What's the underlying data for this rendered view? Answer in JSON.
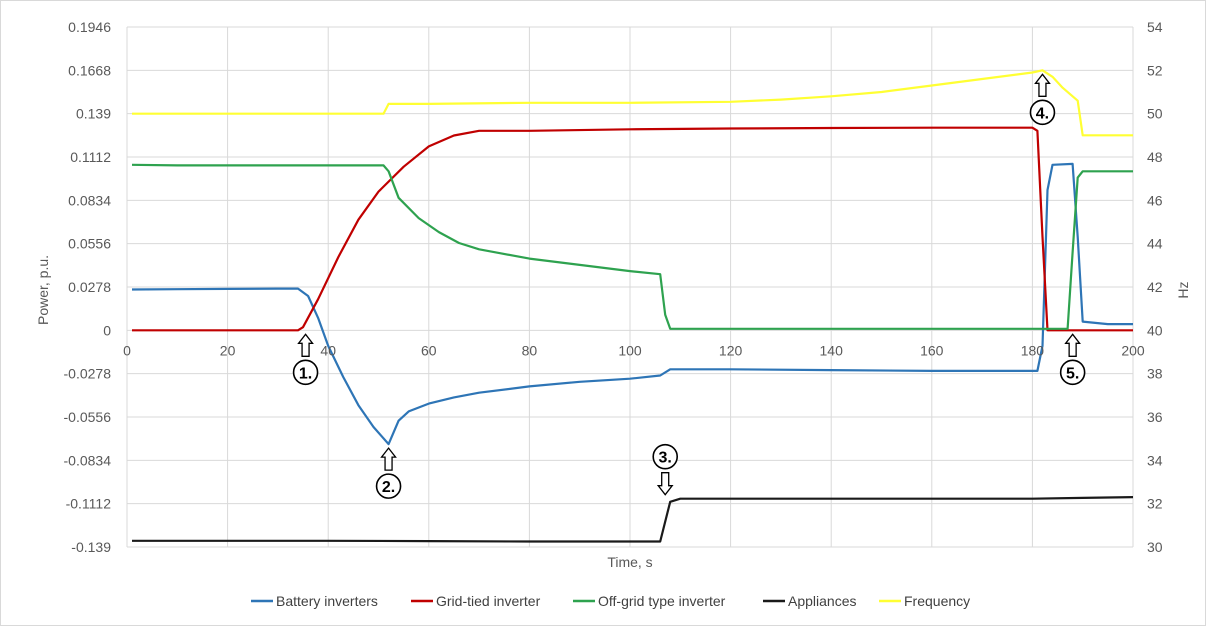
{
  "chart_data": {
    "type": "line",
    "xlabel": "Time, s",
    "ylabel": "Power, p.u.",
    "y2label": "Hz",
    "xlim": [
      0,
      200
    ],
    "ylim": [
      -0.139,
      0.1946
    ],
    "y2lim": [
      30,
      54
    ],
    "xticks": [
      "0",
      "20",
      "40",
      "60",
      "80",
      "100",
      "120",
      "140",
      "160",
      "180",
      "200"
    ],
    "yticks": [
      "0.1946",
      "0.1668",
      "0.139",
      "0.1112",
      "0.0834",
      "0.0556",
      "0.0278",
      "0",
      "-0.0278",
      "-0.0556",
      "-0.0834",
      "-0.1112",
      "-0.139"
    ],
    "y2ticks": [
      "54",
      "52",
      "50",
      "48",
      "46",
      "44",
      "42",
      "40",
      "38",
      "36",
      "34",
      "32",
      "30"
    ],
    "grid": true,
    "legend_position": "bottom",
    "series": [
      {
        "name": "Battery inverters",
        "color": "#2E75B6",
        "axis": "left",
        "points": [
          [
            1,
            0.0262
          ],
          [
            10,
            0.0264
          ],
          [
            20,
            0.0266
          ],
          [
            30,
            0.0268
          ],
          [
            34,
            0.0268
          ],
          [
            36,
            0.022
          ],
          [
            38,
            0.008
          ],
          [
            40,
            -0.01
          ],
          [
            43,
            -0.03
          ],
          [
            46,
            -0.048
          ],
          [
            49,
            -0.062
          ],
          [
            52,
            -0.073
          ],
          [
            54,
            -0.058
          ],
          [
            56,
            -0.052
          ],
          [
            60,
            -0.047
          ],
          [
            65,
            -0.043
          ],
          [
            70,
            -0.04
          ],
          [
            80,
            -0.036
          ],
          [
            90,
            -0.033
          ],
          [
            100,
            -0.031
          ],
          [
            106,
            -0.029
          ],
          [
            108,
            -0.025
          ],
          [
            120,
            -0.025
          ],
          [
            140,
            -0.0255
          ],
          [
            160,
            -0.026
          ],
          [
            181,
            -0.026
          ],
          [
            182,
            -0.01
          ],
          [
            183,
            0.09
          ],
          [
            184,
            0.1062
          ],
          [
            188,
            0.1068
          ],
          [
            189,
            0.06
          ],
          [
            190,
            0.0056
          ],
          [
            195,
            0.004
          ],
          [
            200,
            0.004
          ]
        ]
      },
      {
        "name": "Grid-tied inverter",
        "color": "#C00000",
        "axis": "left",
        "points": [
          [
            1,
            0.0
          ],
          [
            20,
            0.0
          ],
          [
            34,
            0.0
          ],
          [
            35,
            0.002
          ],
          [
            38,
            0.02
          ],
          [
            42,
            0.047
          ],
          [
            46,
            0.071
          ],
          [
            50,
            0.089
          ],
          [
            55,
            0.105
          ],
          [
            60,
            0.118
          ],
          [
            65,
            0.125
          ],
          [
            70,
            0.128
          ],
          [
            80,
            0.128
          ],
          [
            100,
            0.129
          ],
          [
            120,
            0.1295
          ],
          [
            140,
            0.1298
          ],
          [
            160,
            0.13
          ],
          [
            180,
            0.13
          ],
          [
            181,
            0.128
          ],
          [
            182,
            0.06
          ],
          [
            183,
            0.0
          ],
          [
            190,
            0.0
          ],
          [
            200,
            0.0
          ]
        ]
      },
      {
        "name": "Off-grid type inverter",
        "color": "#2EA24F",
        "axis": "left",
        "points": [
          [
            1,
            0.1062
          ],
          [
            10,
            0.1058
          ],
          [
            20,
            0.1058
          ],
          [
            40,
            0.1058
          ],
          [
            51,
            0.1058
          ],
          [
            52,
            0.102
          ],
          [
            54,
            0.085
          ],
          [
            58,
            0.072
          ],
          [
            62,
            0.063
          ],
          [
            66,
            0.056
          ],
          [
            70,
            0.052
          ],
          [
            80,
            0.046
          ],
          [
            90,
            0.042
          ],
          [
            100,
            0.038
          ],
          [
            106,
            0.036
          ],
          [
            107,
            0.01
          ],
          [
            108,
            0.001
          ],
          [
            120,
            0.001
          ],
          [
            150,
            0.001
          ],
          [
            181,
            0.001
          ],
          [
            187,
            0.001
          ],
          [
            188,
            0.05
          ],
          [
            189,
            0.098
          ],
          [
            190,
            0.102
          ],
          [
            200,
            0.102
          ]
        ]
      },
      {
        "name": "Appliances",
        "color": "#1A1A1A",
        "axis": "left",
        "points": [
          [
            1,
            -0.135
          ],
          [
            20,
            -0.135
          ],
          [
            40,
            -0.135
          ],
          [
            60,
            -0.1352
          ],
          [
            80,
            -0.1355
          ],
          [
            100,
            -0.1355
          ],
          [
            106,
            -0.1355
          ],
          [
            108,
            -0.11
          ],
          [
            110,
            -0.108
          ],
          [
            120,
            -0.108
          ],
          [
            140,
            -0.108
          ],
          [
            160,
            -0.108
          ],
          [
            180,
            -0.108
          ],
          [
            190,
            -0.1075
          ],
          [
            200,
            -0.107
          ]
        ]
      },
      {
        "name": "Frequency",
        "color": "#FFFF33",
        "axis": "right",
        "points": [
          [
            1,
            50.0
          ],
          [
            20,
            50.0
          ],
          [
            40,
            50.0
          ],
          [
            51,
            50.0
          ],
          [
            52,
            50.45
          ],
          [
            60,
            50.45
          ],
          [
            80,
            50.5
          ],
          [
            100,
            50.5
          ],
          [
            120,
            50.55
          ],
          [
            130,
            50.65
          ],
          [
            140,
            50.8
          ],
          [
            150,
            51.0
          ],
          [
            160,
            51.3
          ],
          [
            170,
            51.6
          ],
          [
            180,
            51.9
          ],
          [
            182,
            52.0
          ],
          [
            184,
            51.7
          ],
          [
            186,
            51.2
          ],
          [
            188,
            50.8
          ],
          [
            189,
            50.6
          ],
          [
            190,
            49.0
          ],
          [
            200,
            49.0
          ]
        ]
      }
    ],
    "annotations": [
      {
        "label": "1.",
        "x": 35.5,
        "y": 0.0,
        "axis": "left",
        "direction": "up"
      },
      {
        "label": "2.",
        "x": 52,
        "y": -0.073,
        "axis": "left",
        "direction": "up"
      },
      {
        "label": "3.",
        "x": 107,
        "y": -0.108,
        "axis": "left",
        "direction": "down"
      },
      {
        "label": "4.",
        "x": 182,
        "y": 52.0,
        "axis": "right",
        "direction": "up"
      },
      {
        "label": "5.",
        "x": 188,
        "y": 0.0,
        "axis": "left",
        "direction": "up"
      }
    ]
  }
}
